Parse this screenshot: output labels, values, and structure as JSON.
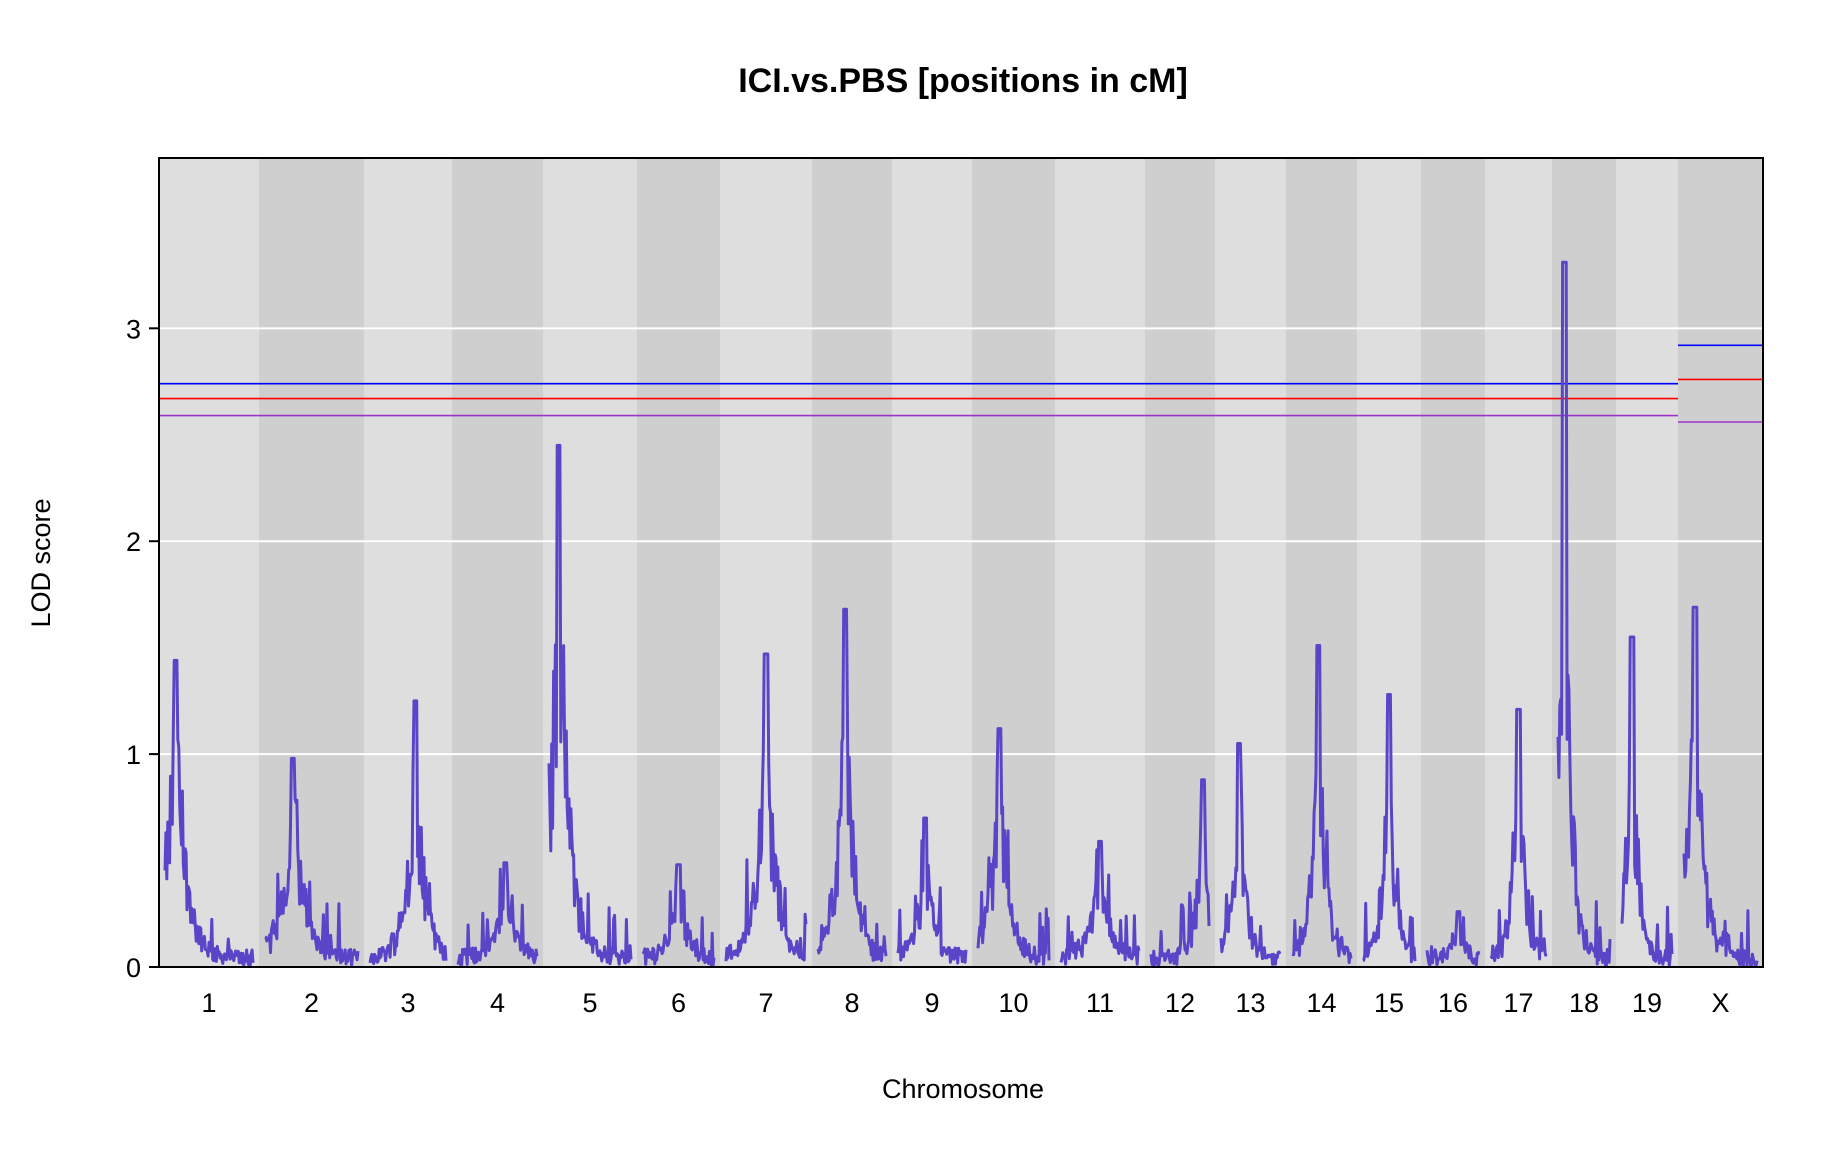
{
  "chart_data": {
    "type": "line",
    "title": "ICI.vs.PBS [positions in cM]",
    "xlabel": "Chromosome",
    "ylabel": "LOD score",
    "ylim": [
      0,
      3.8
    ],
    "y_ticks": [
      0,
      1,
      2,
      3
    ],
    "grid": "horizontal",
    "line_color": "#5A45C8",
    "chromosomes": [
      "1",
      "2",
      "3",
      "4",
      "5",
      "6",
      "7",
      "8",
      "9",
      "10",
      "11",
      "12",
      "13",
      "14",
      "15",
      "16",
      "17",
      "18",
      "19",
      "X"
    ],
    "series": [
      {
        "peaks": [
          {
            "chr": "1",
            "lod": 1.44
          },
          {
            "chr": "2",
            "lod": 0.98
          },
          {
            "chr": "3",
            "lod": 1.25
          },
          {
            "chr": "4",
            "lod": 0.49
          },
          {
            "chr": "5",
            "lod": 2.45
          },
          {
            "chr": "6",
            "lod": 0.48
          },
          {
            "chr": "7",
            "lod": 1.47
          },
          {
            "chr": "8",
            "lod": 1.68
          },
          {
            "chr": "9",
            "lod": 0.7
          },
          {
            "chr": "10",
            "lod": 1.12
          },
          {
            "chr": "11",
            "lod": 0.59
          },
          {
            "chr": "12",
            "lod": 0.88
          },
          {
            "chr": "13",
            "lod": 1.05
          },
          {
            "chr": "14",
            "lod": 1.51
          },
          {
            "chr": "15",
            "lod": 1.28
          },
          {
            "chr": "16",
            "lod": 0.26
          },
          {
            "chr": "17",
            "lod": 1.21
          },
          {
            "chr": "18",
            "lod": 3.31
          },
          {
            "chr": "19",
            "lod": 1.55
          },
          {
            "chr": "X",
            "lod": 1.69
          }
        ]
      }
    ],
    "thresholds": [
      {
        "color": "#0000FF",
        "autosome": 2.74,
        "x": 2.92
      },
      {
        "color": "#FF0000",
        "autosome": 2.67,
        "x": 2.76
      },
      {
        "color": "#9A32CD",
        "autosome": 2.59,
        "x": 2.56
      }
    ]
  }
}
